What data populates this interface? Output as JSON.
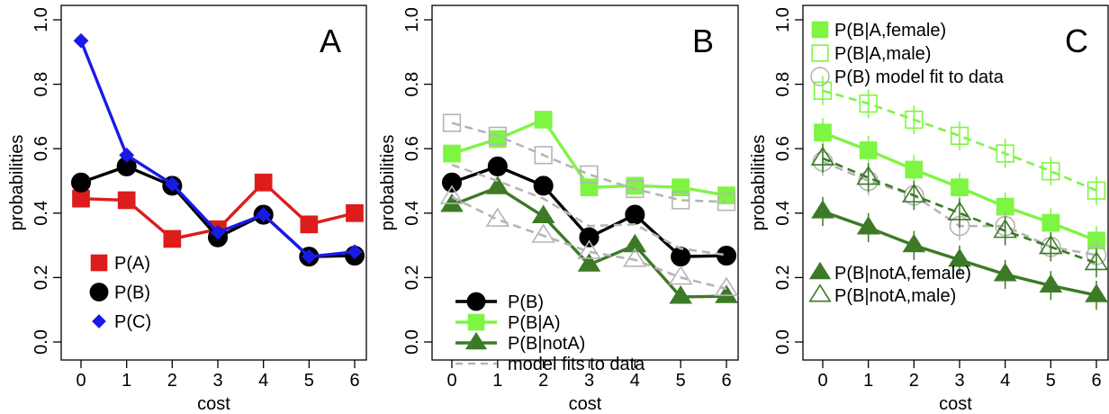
{
  "chart_data": [
    {
      "type": "line",
      "panel_label": "A",
      "xlabel": "cost",
      "ylabel": "probabilities",
      "xlim": [
        0,
        6
      ],
      "ylim": [
        0,
        1
      ],
      "x": [
        0,
        1,
        2,
        3,
        4,
        5,
        6
      ],
      "x_ticks": [
        "0",
        "1",
        "2",
        "3",
        "4",
        "5",
        "6"
      ],
      "y_ticks": [
        "0.0",
        "0.2",
        "0.4",
        "0.6",
        "0.8",
        "1.0"
      ],
      "legend_position": "bottom-left",
      "series": [
        {
          "name": "P(A)",
          "color": "#dd1c1c",
          "marker": "square",
          "values": [
            0.445,
            0.44,
            0.32,
            0.35,
            0.495,
            0.365,
            0.4
          ]
        },
        {
          "name": "P(B)",
          "color": "#000000",
          "marker": "circle",
          "values": [
            0.495,
            0.545,
            0.485,
            0.325,
            0.395,
            0.265,
            0.268
          ]
        },
        {
          "name": "P(C)",
          "color": "#1a1ae6",
          "marker": "diamond",
          "values": [
            0.935,
            0.58,
            0.49,
            0.34,
            0.395,
            0.265,
            0.28
          ]
        }
      ]
    },
    {
      "type": "line",
      "panel_label": "B",
      "xlabel": "cost",
      "ylabel": "probabilities",
      "xlim": [
        0,
        6
      ],
      "ylim": [
        0,
        1
      ],
      "x": [
        0,
        1,
        2,
        3,
        4,
        5,
        6
      ],
      "x_ticks": [
        "0",
        "1",
        "2",
        "3",
        "4",
        "5",
        "6"
      ],
      "y_ticks": [
        "0.0",
        "0.2",
        "0.4",
        "0.6",
        "0.8",
        "1.0"
      ],
      "legend_position": "bottom-left",
      "series": [
        {
          "name": "P(B)",
          "color": "#000000",
          "marker": "circle",
          "values": [
            0.495,
            0.545,
            0.485,
            0.325,
            0.395,
            0.265,
            0.268
          ]
        },
        {
          "name": "P(B|A)",
          "color": "#7ef542",
          "marker": "square",
          "values": [
            0.585,
            0.63,
            0.69,
            0.48,
            0.485,
            0.48,
            0.455
          ]
        },
        {
          "name": "P(B|notA)",
          "color": "#3c7a26",
          "marker": "triangle",
          "values": [
            0.425,
            0.48,
            0.39,
            0.24,
            0.3,
            0.14,
            0.142
          ]
        },
        {
          "name": "model fits to data",
          "color": "#b5b5b5",
          "line_style": "dashed",
          "values": [
            0.55,
            0.5,
            0.445,
            0.36,
            0.365,
            0.29,
            0.27
          ]
        },
        {
          "color": "#b5b5b5",
          "line_style": "dashed",
          "marker": "open-square",
          "values": [
            0.68,
            0.64,
            0.58,
            0.52,
            0.475,
            0.44,
            0.435
          ]
        },
        {
          "color": "#b5b5b5",
          "line_style": "dashed",
          "marker": "open-triangle",
          "values": [
            0.45,
            0.38,
            0.33,
            0.28,
            0.255,
            0.2,
            0.165
          ]
        }
      ]
    },
    {
      "type": "line",
      "panel_label": "C",
      "xlabel": "cost",
      "ylabel": "probabilities",
      "xlim": [
        0,
        6
      ],
      "ylim": [
        0,
        1
      ],
      "x": [
        0,
        1,
        2,
        3,
        4,
        5,
        6
      ],
      "x_ticks": [
        "0",
        "1",
        "2",
        "3",
        "4",
        "5",
        "6"
      ],
      "y_ticks": [
        "0.0",
        "0.2",
        "0.4",
        "0.6",
        "0.8",
        "1.0"
      ],
      "legend_position": "top-left and bottom-left",
      "series": [
        {
          "name": "P(B|A,female)",
          "color": "#7ef542",
          "marker": "square",
          "line_style": "solid",
          "values": [
            0.65,
            0.595,
            0.535,
            0.48,
            0.42,
            0.37,
            0.315
          ]
        },
        {
          "name": "P(B|A,male)",
          "color": "#7ef542",
          "marker": "open-square",
          "line_style": "dashed",
          "values": [
            0.78,
            0.74,
            0.69,
            0.64,
            0.585,
            0.53,
            0.47
          ]
        },
        {
          "name": "P(B) model fit to data",
          "color": "#b5b5b5",
          "marker": "open-circle",
          "line_style": "dashed",
          "values": [
            0.56,
            0.5,
            0.455,
            0.36,
            0.36,
            0.295,
            0.27
          ]
        },
        {
          "name": "P(B|notA,female)",
          "color": "#3c7a26",
          "marker": "triangle",
          "line_style": "solid",
          "values": [
            0.405,
            0.355,
            0.3,
            0.255,
            0.21,
            0.175,
            0.145
          ]
        },
        {
          "name": "P(B|notA,male)",
          "color": "#3c7a26",
          "marker": "open-triangle",
          "line_style": "dashed",
          "values": [
            0.57,
            0.51,
            0.455,
            0.4,
            0.345,
            0.295,
            0.245
          ]
        }
      ]
    }
  ]
}
